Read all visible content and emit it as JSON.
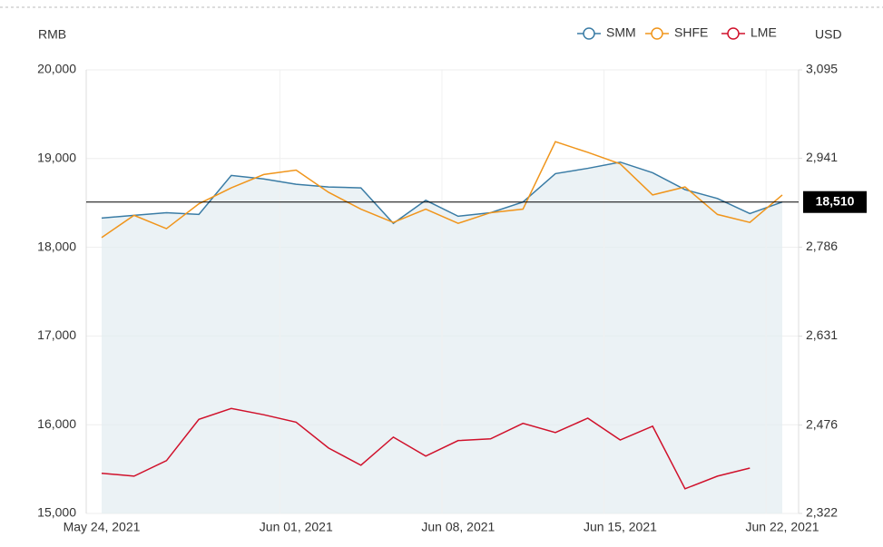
{
  "chart_data": {
    "type": "line",
    "y_label": "RMB",
    "y2_label": "USD",
    "categories": [
      "May 24, 2021",
      null,
      null,
      null,
      null,
      null,
      "Jun 01, 2021",
      null,
      null,
      null,
      null,
      "Jun 08, 2021",
      null,
      null,
      null,
      null,
      "Jun 15, 2021",
      null,
      null,
      null,
      null,
      "Jun 22, 2021"
    ],
    "series": [
      {
        "name": "SMM",
        "color": "#3a7ca5",
        "area": true,
        "values": [
          18330,
          18360,
          18390,
          18370,
          18810,
          18770,
          18710,
          18680,
          18670,
          18270,
          18530,
          18350,
          18390,
          18510,
          18830,
          18890,
          18960,
          18840,
          18650,
          18550,
          18380,
          18510
        ]
      },
      {
        "name": "SHFE",
        "color": "#f0951b",
        "values": [
          18110,
          18360,
          18210,
          18490,
          18670,
          18820,
          18870,
          18620,
          18430,
          18280,
          18430,
          18270,
          18390,
          18430,
          19190,
          19070,
          18940,
          18590,
          18680,
          18370,
          18280,
          18590
        ]
      },
      {
        "name": "LME",
        "color": "#d0112b",
        "axis": "y2",
        "values": [
          2392,
          2387,
          2414,
          2486,
          2505,
          2494,
          2481,
          2436,
          2406,
          2455,
          2422,
          2449,
          2452,
          2479,
          2463,
          2488,
          2450,
          2474,
          2365,
          2387,
          2401,
          null
        ]
      }
    ],
    "ylim": [
      15000,
      20000
    ],
    "yticks": [
      {
        "value": 15000,
        "label": "15,000"
      },
      {
        "value": 16000,
        "label": "16,000"
      },
      {
        "value": 17000,
        "label": "17,000"
      },
      {
        "value": 18000,
        "label": "18,000"
      },
      {
        "value": 19000,
        "label": "19,000"
      },
      {
        "value": 20000,
        "label": "20,000"
      }
    ],
    "y2lim": [
      2322,
      3095
    ],
    "y2ticks": [
      {
        "value": 2322,
        "label": "2,322"
      },
      {
        "value": 2476,
        "label": "2,476"
      },
      {
        "value": 2631,
        "label": "2,631"
      },
      {
        "value": 2786,
        "label": "2,786"
      },
      {
        "value": 2941,
        "label": "2,941"
      },
      {
        "value": 3095,
        "label": "3,095"
      }
    ],
    "reference_line": {
      "value": 18510,
      "label": "18,510"
    },
    "legend": "top-right",
    "grid": true
  }
}
